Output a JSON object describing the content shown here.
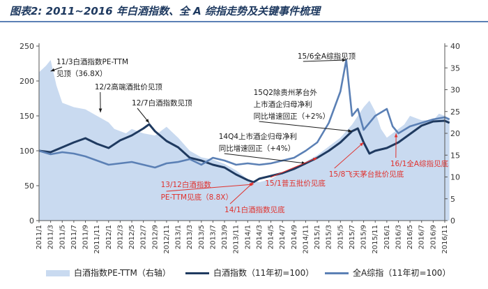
{
  "chart_data": {
    "type": "area+line",
    "title": "图表2: 2011~2016 年白酒指数、全 A 综指走势及关键事件梳理",
    "x_ticks": [
      "2011/1",
      "2011/3",
      "2011/5",
      "2011/7",
      "2011/9",
      "2011/11",
      "2012/1",
      "2012/3",
      "2012/5",
      "2012/7",
      "2012/9",
      "2012/11",
      "2013/1",
      "2013/3",
      "2013/5",
      "2013/7",
      "2013/9",
      "2013/11",
      "2014/1",
      "2014/3",
      "2014/5",
      "2014/7",
      "2014/9",
      "2014/11",
      "2015/1",
      "2015/3",
      "2015/5",
      "2015/7",
      "2015/9",
      "2015/11",
      "2016/1",
      "2016/3",
      "2016/5",
      "2016/7",
      "2016/9",
      "2016/11"
    ],
    "y_left": {
      "min": 0,
      "max": 250,
      "ticks": [
        0,
        50,
        100,
        150,
        200,
        250
      ]
    },
    "y_right": {
      "min": 0,
      "max": 40,
      "ticks": [
        0,
        5,
        10,
        15,
        20,
        25,
        30,
        35,
        40
      ]
    },
    "series": [
      {
        "name": "白酒指数PE-TTM（右轴）",
        "axis": "right",
        "kind": "area",
        "color": "#c9daf0",
        "points": [
          [
            0,
            34
          ],
          [
            0.6,
            35.5
          ],
          [
            1,
            36.8
          ],
          [
            1.5,
            31
          ],
          [
            2,
            27
          ],
          [
            3,
            26
          ],
          [
            4,
            25.5
          ],
          [
            5,
            24
          ],
          [
            6,
            22.5
          ],
          [
            6.5,
            21
          ],
          [
            7,
            20.5
          ],
          [
            7.5,
            20
          ],
          [
            8,
            21
          ],
          [
            9,
            20
          ],
          [
            10,
            19.5
          ],
          [
            11,
            21.5
          ],
          [
            12,
            19
          ],
          [
            13,
            16
          ],
          [
            14,
            14.5
          ],
          [
            15,
            14
          ],
          [
            16,
            13
          ],
          [
            17,
            11.5
          ],
          [
            18,
            9.5
          ],
          [
            19,
            8.8
          ],
          [
            20,
            9.5
          ],
          [
            21,
            11
          ],
          [
            22,
            12
          ],
          [
            23,
            13.5
          ],
          [
            24,
            15
          ],
          [
            25,
            17
          ],
          [
            26,
            19
          ],
          [
            27,
            22
          ],
          [
            27.5,
            24
          ],
          [
            28,
            26
          ],
          [
            28.5,
            27.5
          ],
          [
            29,
            25
          ],
          [
            29.5,
            21
          ],
          [
            30,
            19
          ],
          [
            30.5,
            20
          ],
          [
            31,
            21
          ],
          [
            31.5,
            22
          ],
          [
            32,
            24
          ],
          [
            33,
            23
          ],
          [
            34,
            23
          ],
          [
            34.5,
            24.5
          ],
          [
            35,
            24
          ],
          [
            35.4,
            23.5
          ]
        ]
      },
      {
        "name": "白酒指数（11年初=100）",
        "axis": "left",
        "kind": "line",
        "color": "#1f3a60",
        "points": [
          [
            0,
            100
          ],
          [
            1,
            98
          ],
          [
            2,
            105
          ],
          [
            3,
            112
          ],
          [
            4,
            118
          ],
          [
            5,
            110
          ],
          [
            6,
            104
          ],
          [
            7,
            115
          ],
          [
            8,
            122
          ],
          [
            9,
            132
          ],
          [
            9.5,
            138
          ],
          [
            10,
            128
          ],
          [
            11,
            114
          ],
          [
            12,
            105
          ],
          [
            13,
            90
          ],
          [
            14,
            86
          ],
          [
            15,
            80
          ],
          [
            16,
            76
          ],
          [
            17,
            66
          ],
          [
            18,
            58
          ],
          [
            18.5,
            55
          ],
          [
            19,
            60
          ],
          [
            20,
            64
          ],
          [
            21,
            68
          ],
          [
            22,
            74
          ],
          [
            23,
            82
          ],
          [
            24,
            90
          ],
          [
            25,
            100
          ],
          [
            26,
            112
          ],
          [
            27,
            128
          ],
          [
            27.5,
            132
          ],
          [
            28,
            112
          ],
          [
            28.5,
            96
          ],
          [
            29,
            100
          ],
          [
            30,
            104
          ],
          [
            31,
            112
          ],
          [
            32,
            124
          ],
          [
            33,
            136
          ],
          [
            34,
            142
          ],
          [
            35,
            143
          ],
          [
            35.4,
            140
          ]
        ]
      },
      {
        "name": "全A综指（11年初=100）",
        "axis": "left",
        "kind": "line",
        "color": "#5b80b5",
        "points": [
          [
            0,
            100
          ],
          [
            1,
            95
          ],
          [
            2,
            98
          ],
          [
            3,
            96
          ],
          [
            4,
            92
          ],
          [
            5,
            86
          ],
          [
            6,
            80
          ],
          [
            7,
            82
          ],
          [
            8,
            84
          ],
          [
            9,
            80
          ],
          [
            10,
            76
          ],
          [
            11,
            82
          ],
          [
            12,
            84
          ],
          [
            13,
            88
          ],
          [
            14,
            80
          ],
          [
            15,
            90
          ],
          [
            16,
            86
          ],
          [
            17,
            80
          ],
          [
            18,
            82
          ],
          [
            19,
            80
          ],
          [
            20,
            82
          ],
          [
            21,
            86
          ],
          [
            22,
            90
          ],
          [
            23,
            100
          ],
          [
            24,
            112
          ],
          [
            25,
            140
          ],
          [
            26,
            185
          ],
          [
            26.5,
            230
          ],
          [
            27,
            150
          ],
          [
            27.5,
            160
          ],
          [
            28,
            130
          ],
          [
            29,
            150
          ],
          [
            30,
            160
          ],
          [
            30.5,
            135
          ],
          [
            31,
            125
          ],
          [
            32,
            135
          ],
          [
            33,
            140
          ],
          [
            34,
            145
          ],
          [
            35,
            148
          ],
          [
            35.4,
            145
          ]
        ]
      }
    ],
    "annotations": [
      {
        "text": "11/3白酒指数PE-TTM",
        "x": 1.5,
        "y_left": 224,
        "align": "start",
        "color": "#1a1a1a",
        "arrow_to": [
          1,
          214
        ]
      },
      {
        "text": "见顶（36.8X）",
        "x": 1.5,
        "y_left": 207,
        "align": "start",
        "color": "#1a1a1a"
      },
      {
        "text": "12/2高端酒批价见顶",
        "x": 4.8,
        "y_left": 188,
        "align": "start",
        "color": "#1a1a1a",
        "arrow_to": [
          5.3,
          155
        ]
      },
      {
        "text": "12/7白酒指数见顶",
        "x": 8.0,
        "y_left": 165,
        "align": "start",
        "color": "#1a1a1a",
        "arrow_to": [
          9.5,
          140
        ]
      },
      {
        "text": "15/6全A综指见顶",
        "x": 22.3,
        "y_left": 232,
        "align": "start",
        "color": "#1a1a1a",
        "arrow_to": [
          26.5,
          230
        ]
      },
      {
        "text": "15Q2除贵州茅台外",
        "x": 18.5,
        "y_left": 180,
        "align": "start",
        "color": "#1a1a1a"
      },
      {
        "text": "上市酒企归母净利",
        "x": 18.5,
        "y_left": 163,
        "align": "start",
        "color": "#1a1a1a"
      },
      {
        "text": "同比增速回正（+2%）",
        "x": 18.5,
        "y_left": 146,
        "align": "start",
        "color": "#1a1a1a",
        "arrow_to": [
          27,
          128
        ]
      },
      {
        "text": "14Q4上市酒企归母净利",
        "x": 15.5,
        "y_left": 117,
        "align": "start",
        "color": "#1a1a1a"
      },
      {
        "text": "同比增速回正（+4%）",
        "x": 15.5,
        "y_left": 100,
        "align": "start",
        "color": "#1a1a1a",
        "arrow_to": [
          23,
          82
        ]
      },
      {
        "text": "13/12白酒指数",
        "x": 10.5,
        "y_left": 48,
        "align": "start",
        "color": "#e0312d"
      },
      {
        "text": "PE-TTM见底（8.8X）",
        "x": 10.5,
        "y_left": 30,
        "align": "start",
        "color": "#e0312d",
        "arrow_to": [
          18.5,
          52
        ]
      },
      {
        "text": "14/1白酒指数见底",
        "x": 16.0,
        "y_left": 12,
        "align": "start",
        "color": "#e0312d",
        "arrow_to": [
          18.5,
          55
        ]
      },
      {
        "text": "15/1普五批价见底",
        "x": 19.5,
        "y_left": 50,
        "align": "start",
        "color": "#e0312d",
        "arrow_to": [
          24,
          90
        ]
      },
      {
        "text": "15/8飞天茅台批价见底",
        "x": 25.0,
        "y_left": 63,
        "align": "start",
        "color": "#e0312d",
        "arrow_to": [
          28,
          112
        ]
      },
      {
        "text": "16/1全A综指见底",
        "x": 30.3,
        "y_left": 78,
        "align": "start",
        "color": "#e0312d",
        "arrow_to": [
          30.8,
          125
        ]
      }
    ]
  },
  "legend": {
    "items": [
      {
        "label": "白酒指数PE-TTM（右轴）",
        "color": "#c9daf0"
      },
      {
        "label": "白酒指数（11年初=100）",
        "color": "#1f3a60"
      },
      {
        "label": "全A综指（11年初=100）",
        "color": "#5b80b5"
      }
    ]
  }
}
